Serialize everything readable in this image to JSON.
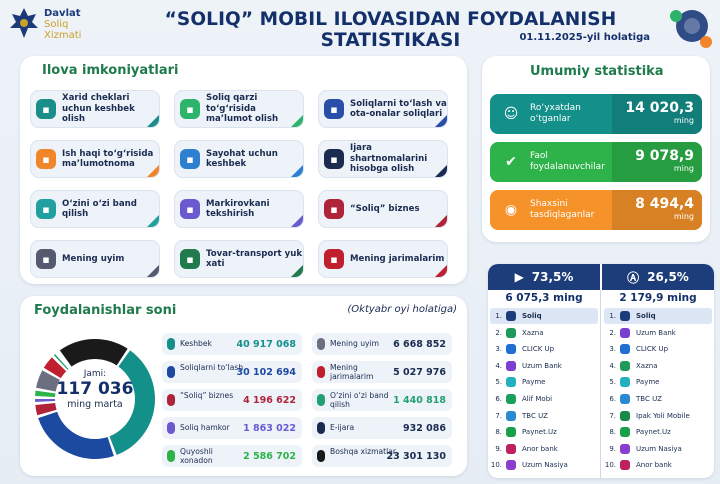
{
  "header": {
    "logo_line1": "Davlat",
    "logo_line2": "Soliq",
    "logo_line3": "Xizmati",
    "title": "“SOLIQ” MOBIL ILOVASIDAN FOYDALANISH STATISTIKASI",
    "subtitle": "01.11.2025-yil holatiga"
  },
  "features": {
    "title": "Ilova imkoniyatlari",
    "items": [
      {
        "label": "Xarid cheklari uchun keshbek olish",
        "color": "#1c8e8a",
        "corner": "#1c8e8a"
      },
      {
        "label": "Soliq qarzi to‘g‘risida ma’lumot olish",
        "color": "#2db36a",
        "corner": "#2db36a"
      },
      {
        "label": "Soliqlarni to‘lash va ota-onalar soliqlari",
        "color": "#2a4fa8",
        "corner": "#2a4fa8"
      },
      {
        "label": "Ish haqi to‘g‘risida ma’lumotnoma",
        "color": "#f0852a",
        "corner": "#f0852a"
      },
      {
        "label": "Sayohat uchun keshbek",
        "color": "#2d7fd0",
        "corner": "#2d7fd0"
      },
      {
        "label": "Ijara shartnomalarini hisobga olish",
        "color": "#1a2c50",
        "corner": "#1a2c50"
      },
      {
        "label": "O‘zini o‘zi band qilish",
        "color": "#21a0a0",
        "corner": "#21a0a0"
      },
      {
        "label": "Markirovkani tekshirish",
        "color": "#6a5ad0",
        "corner": "#6a5ad0"
      },
      {
        "label": "“Soliq” biznes",
        "color": "#b0243a",
        "corner": "#b0243a"
      },
      {
        "label": "Mening uyim",
        "color": "#555a6e",
        "corner": "#555a6e"
      },
      {
        "label": "Tovar-transport yuk xati",
        "color": "#1f7a4c",
        "corner": "#1f7a4c"
      },
      {
        "label": "Mening jarimalarim",
        "color": "#c0202e",
        "corner": "#c0202e"
      }
    ]
  },
  "stats": {
    "title": "Umumiy statistika",
    "items": [
      {
        "label": "Ro‘yxatdan o‘tganlar",
        "value": "14 020,3",
        "unit": "ming",
        "color": "#14908a"
      },
      {
        "label": "Faol foydalanuvchilar",
        "value": "9 078,9",
        "unit": "ming",
        "color": "#2db34a"
      },
      {
        "label": "Shaxsini tasdiqlaganlar",
        "value": "8 494,4",
        "unit": "ming",
        "color": "#f5922a"
      }
    ]
  },
  "usage": {
    "title": "Foydalanishlar soni",
    "note": "(Oktyabr oyi holatiga)",
    "total_label": "Jami:",
    "total_value": "117 036",
    "total_unit": "ming marta",
    "items": [
      {
        "label": "Keshbek",
        "value": "40 917 068",
        "color": "#14908a"
      },
      {
        "label": "Soliqlarni to‘lash",
        "value": "30 102 694",
        "color": "#1c4aa0"
      },
      {
        "label": "“Soliq” biznes",
        "value": "4 196 622",
        "color": "#b0243a"
      },
      {
        "label": "Soliq hamkor",
        "value": "1 863 022",
        "color": "#6a5ad0"
      },
      {
        "label": "Quyoshli xonadon",
        "value": "2 586 702",
        "color": "#2db34a"
      },
      {
        "label": "Mening uyim",
        "value": "6 668 852",
        "color": "#6b6f80"
      },
      {
        "label": "Mening jarimalarim",
        "value": "5 027 976",
        "color": "#c0202e"
      },
      {
        "label": "O‘zini o‘zi band qilish",
        "value": "1 440 818",
        "color": "#21a070"
      },
      {
        "label": "E-ijara",
        "value": "932 086",
        "color": "#1a2c50"
      },
      {
        "label": "Boshqa xizmatlar",
        "value": "23 301 130",
        "color": "#1a1a1a"
      }
    ]
  },
  "stores": {
    "google": {
      "percent": "73,5%",
      "total": "6 075,3 ming",
      "ranks": [
        {
          "n": "1.",
          "name": "Soliq",
          "color": "#1c3c7a"
        },
        {
          "n": "2.",
          "name": "Xazna",
          "color": "#1f9a5a"
        },
        {
          "n": "3.",
          "name": "CLICK Up",
          "color": "#1e6fd0"
        },
        {
          "n": "4.",
          "name": "Uzum Bank",
          "color": "#7b3fd0"
        },
        {
          "n": "5.",
          "name": "Payme",
          "color": "#22b0c0"
        },
        {
          "n": "6.",
          "name": "Alif Mobi",
          "color": "#1aa05a"
        },
        {
          "n": "7.",
          "name": "TBC UZ",
          "color": "#2a8ad0"
        },
        {
          "n": "8.",
          "name": "Paynet.Uz",
          "color": "#1aa04a"
        },
        {
          "n": "9.",
          "name": "Anor bank",
          "color": "#c02060"
        },
        {
          "n": "10.",
          "name": "Uzum Nasiya",
          "color": "#8a3fd0"
        }
      ]
    },
    "apple": {
      "percent": "26,5%",
      "total": "2 179,9 ming",
      "ranks": [
        {
          "n": "1.",
          "name": "Soliq",
          "color": "#1c3c7a"
        },
        {
          "n": "2.",
          "name": "Uzum Bank",
          "color": "#7b3fd0"
        },
        {
          "n": "3.",
          "name": "CLICK Up",
          "color": "#1e6fd0"
        },
        {
          "n": "4.",
          "name": "Xazna",
          "color": "#1f9a5a"
        },
        {
          "n": "5.",
          "name": "Payme",
          "color": "#22b0c0"
        },
        {
          "n": "6.",
          "name": "TBC UZ",
          "color": "#2a8ad0"
        },
        {
          "n": "7.",
          "name": "Ipak Yoli Mobile",
          "color": "#1a8a4a"
        },
        {
          "n": "8.",
          "name": "Paynet.Uz",
          "color": "#1aa04a"
        },
        {
          "n": "9.",
          "name": "Uzum Nasiya",
          "color": "#8a3fd0"
        },
        {
          "n": "10.",
          "name": "Anor bank",
          "color": "#c02060"
        }
      ]
    }
  },
  "chart_data": {
    "type": "pie",
    "categories": [
      "Keshbek",
      "Soliqlarni to‘lash",
      "“Soliq” biznes",
      "Soliq hamkor",
      "Quyoshli xonadon",
      "Mening uyim",
      "Mening jarimalarim",
      "O‘zini o‘zi band qilish",
      "E-ijara",
      "Boshqa xizmatlar"
    ],
    "values": [
      40917068,
      30102694,
      4196622,
      1863022,
      2586702,
      6668852,
      5027976,
      1440818,
      932086,
      23301130
    ]
  }
}
